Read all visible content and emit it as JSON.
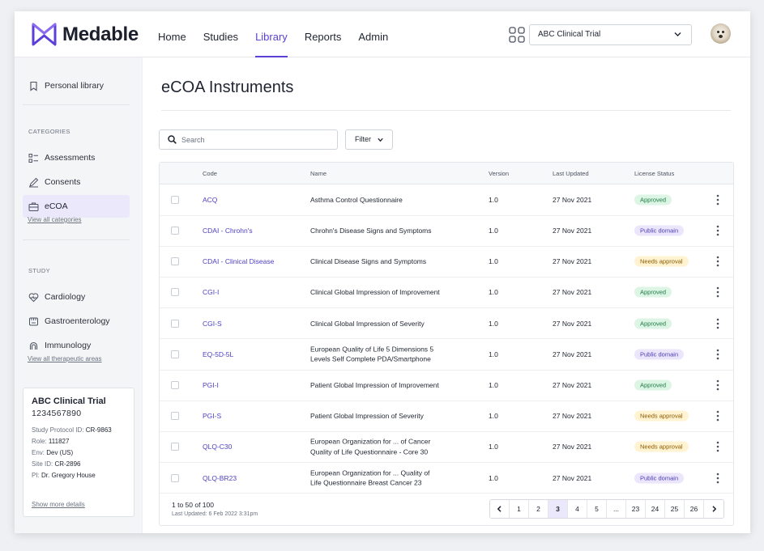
{
  "brand": {
    "name": "Medable",
    "accent": "#5b3fd6"
  },
  "nav": [
    {
      "label": "Home",
      "active": false
    },
    {
      "label": "Studies",
      "active": false
    },
    {
      "label": "Library",
      "active": true
    },
    {
      "label": "Reports",
      "active": false
    },
    {
      "label": "Admin",
      "active": false
    }
  ],
  "header": {
    "trial_select": "ABC Clinical Trial",
    "apps_icon": "grid-icon",
    "avatar": "user-avatar-dog"
  },
  "sidebar": {
    "personal_library": "Personal library",
    "categories_heading": "CATEGORIES",
    "categories": [
      {
        "label": "Assessments",
        "icon": "list-icon",
        "active": false
      },
      {
        "label": "Consents",
        "icon": "pen-icon",
        "active": false
      },
      {
        "label": "eCOA",
        "icon": "briefcase-icon",
        "active": true
      }
    ],
    "view_all_categories": "View all categories",
    "study_heading": "STUDY",
    "study_items": [
      {
        "label": "Cardiology",
        "icon": "heart-icon"
      },
      {
        "label": "Gastroenterology",
        "icon": "stomach-icon"
      },
      {
        "label": "Immunology",
        "icon": "antibody-icon"
      }
    ],
    "view_all_areas": "View all therapeutic areas",
    "trial_card": {
      "title": "ABC Clinical Trial",
      "number": "1234567890",
      "protocol_label": "Study Protocol ID: ",
      "protocol_value": "CR-9863",
      "role_label": "Role: ",
      "role_value": "111827",
      "env_label": "Env: ",
      "env_value": "Dev (US)",
      "site_label": "Site ID: ",
      "site_value": "CR-2896",
      "pi_label": "PI: ",
      "pi_value": "Dr. Gregory House",
      "show_more": "Show more details"
    }
  },
  "main": {
    "title": "eCOA Instruments",
    "search_placeholder": "Search",
    "filter_label": "Filter",
    "columns": {
      "code": "Code",
      "name": "Name",
      "version": "Version",
      "updated": "Last Updated",
      "license": "License Status"
    },
    "rows": [
      {
        "code": "ACQ",
        "name1": "Asthma Control Questionnaire",
        "name2": "",
        "version": "1.0",
        "updated": "27 Nov 2021",
        "status": "Approved",
        "status_type": "approved"
      },
      {
        "code": "CDAI - Chrohn's",
        "name1": "Chrohn's Disease Signs and Symptoms",
        "name2": "",
        "version": "1.0",
        "updated": "27 Nov 2021",
        "status": "Public domain",
        "status_type": "public"
      },
      {
        "code": "CDAI - Clinical Disease",
        "name1": "Clinical Disease Signs and Symptoms",
        "name2": "",
        "version": "1.0",
        "updated": "27 Nov 2021",
        "status": "Needs approval",
        "status_type": "needs"
      },
      {
        "code": "CGI-I",
        "name1": "Clinical Global Impression of Improvement",
        "name2": "",
        "version": "1.0",
        "updated": "27 Nov 2021",
        "status": "Approved",
        "status_type": "approved"
      },
      {
        "code": "CGI-S",
        "name1": "Clinical Global Impression of Severity",
        "name2": "",
        "version": "1.0",
        "updated": "27 Nov 2021",
        "status": "Approved",
        "status_type": "approved"
      },
      {
        "code": "EQ-5D-5L",
        "name1": "European Quality of Life 5 Dimensions 5",
        "name2": "Levels Self Complete PDA/Smartphone",
        "version": "1.0",
        "updated": "27 Nov 2021",
        "status": "Public domain",
        "status_type": "public"
      },
      {
        "code": "PGI-I",
        "name1": "Patient Global Impression of Improvement",
        "name2": "",
        "version": "1.0",
        "updated": "27 Nov 2021",
        "status": "Approved",
        "status_type": "approved"
      },
      {
        "code": "PGI-S",
        "name1": "Patient Global Impression of Severity",
        "name2": "",
        "version": "1.0",
        "updated": "27 Nov 2021",
        "status": "Needs approval",
        "status_type": "needs"
      },
      {
        "code": "QLQ-C30",
        "name1": "European Organization for ...  of Cancer",
        "name2": "Quality of Life Questionnaire - Core 30",
        "version": "1.0",
        "updated": "27 Nov 2021",
        "status": "Needs approval",
        "status_type": "needs"
      },
      {
        "code": "QLQ-BR23",
        "name1": "European Organization for ... Quality of",
        "name2": "Life Questionnaire Breast Cancer 23",
        "version": "1.0",
        "updated": "27 Nov 2021",
        "status": "Public domain",
        "status_type": "public"
      }
    ],
    "footer": {
      "count": "1 to 50 of 100",
      "last_updated": "Last Updated: 6 Feb 2022 3:31pm",
      "pages": [
        "1",
        "2",
        "3",
        "4",
        "5",
        "...",
        "23",
        "24",
        "25",
        "26"
      ],
      "active_page": "3"
    }
  },
  "status_colors": {
    "approved": "#1f7a45",
    "public": "#4b3cb0",
    "needs": "#8a5a00"
  }
}
